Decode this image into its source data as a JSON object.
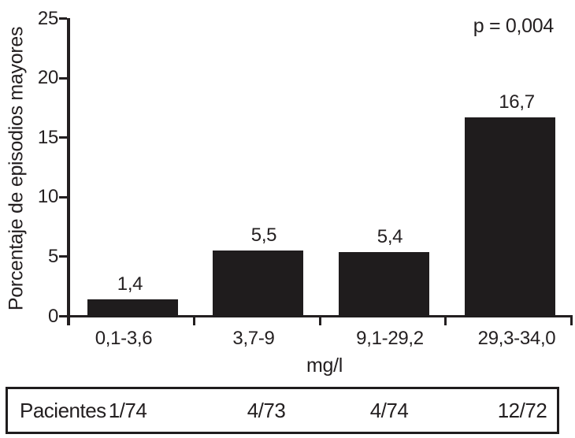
{
  "chart_data": {
    "type": "bar",
    "title": "",
    "ylabel": "Porcentaje de episodios mayores",
    "xlabel": "mg/l",
    "categories": [
      "0,1-3,6",
      "3,7-9",
      "9,1-29,2",
      "29,3-34,0"
    ],
    "values": [
      1.4,
      5.5,
      5.4,
      16.7
    ],
    "value_labels": [
      "1,4",
      "5,5",
      "5,4",
      "16,7"
    ],
    "ylim": [
      0,
      25
    ],
    "yticks": [
      0,
      5,
      10,
      15,
      20,
      25
    ],
    "ytick_labels": [
      "0",
      "5",
      "10",
      "15",
      "20",
      "25"
    ],
    "annotation": "p = 0,004",
    "grid": false,
    "legend": "none",
    "bar_color": "#1f1c1d",
    "axis_color": "#231f20",
    "patients_table": {
      "row_label": "Pacientes",
      "values": [
        "1/74",
        "4/73",
        "4/74",
        "12/72"
      ]
    }
  }
}
